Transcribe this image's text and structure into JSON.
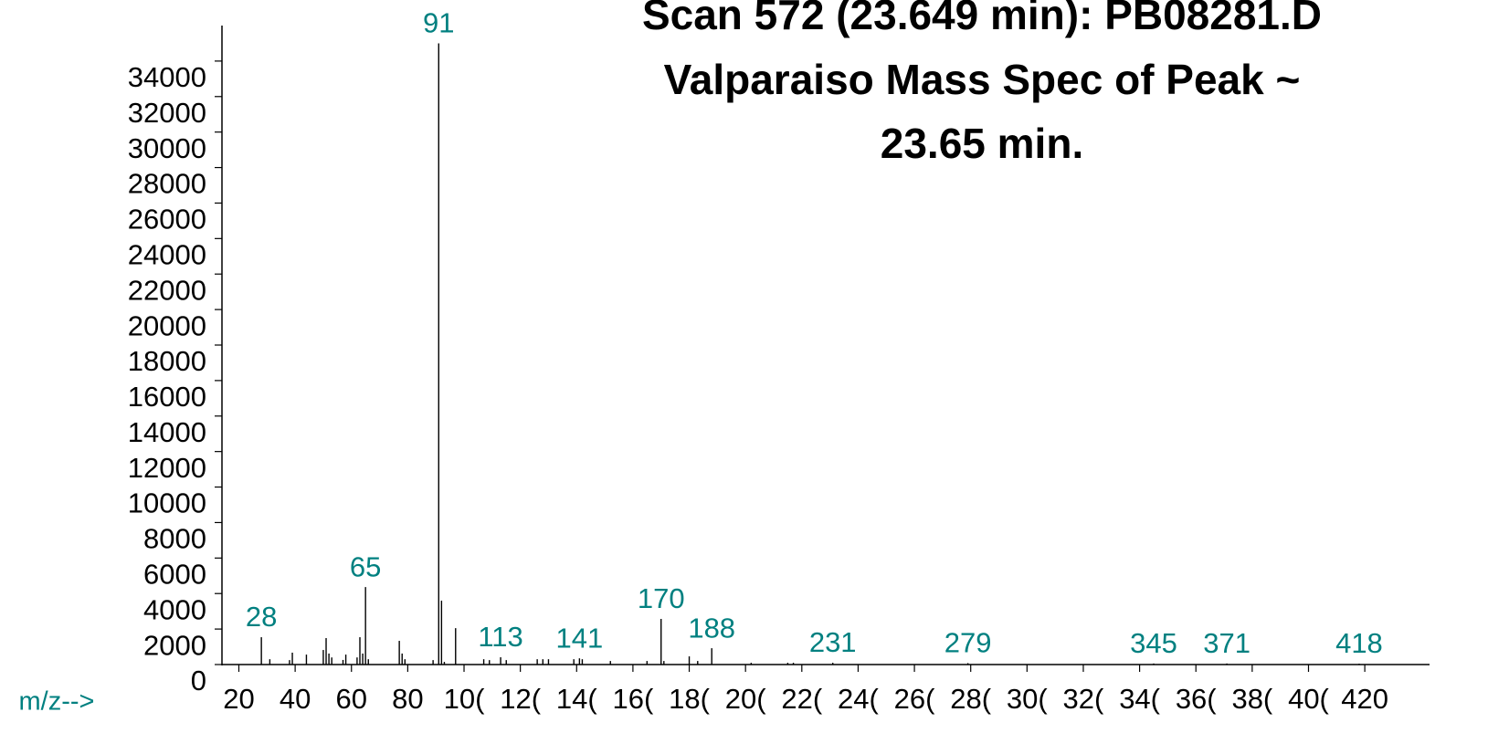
{
  "chart_data": {
    "type": "bar",
    "title": [
      "Scan 572 (23.649 min): PB08281.D",
      "Valparaiso  Mass Spec of Peak ~",
      "23.65 min."
    ],
    "x_axis_label": "m/z-->",
    "x": [
      28,
      31,
      38,
      39,
      44,
      50,
      51,
      52,
      53,
      57,
      58,
      62,
      63,
      64,
      65,
      66,
      77,
      78,
      79,
      89,
      91,
      92,
      93,
      97,
      107,
      109,
      113,
      115,
      126,
      128,
      130,
      139,
      141,
      142,
      152,
      165,
      170,
      171,
      180,
      183,
      188,
      202,
      215,
      217,
      231,
      279,
      345,
      371,
      418
    ],
    "values": [
      1540,
      300,
      250,
      670,
      560,
      820,
      1490,
      620,
      400,
      260,
      560,
      400,
      1540,
      620,
      4365,
      300,
      1335,
      620,
      300,
      250,
      35000,
      3600,
      150,
      2050,
      300,
      250,
      410,
      250,
      300,
      300,
      300,
      300,
      350,
      300,
      200,
      200,
      2570,
      200,
      460,
      200,
      920,
      100,
      100,
      100,
      100,
      80,
      60,
      60,
      50
    ],
    "color": "#000000",
    "annotations": [
      28,
      65,
      91,
      113,
      141,
      170,
      188,
      231,
      279,
      345,
      371,
      418
    ],
    "annotation_color": "#008080",
    "xlim": [
      14,
      443
    ],
    "ylim": [
      0,
      36000
    ],
    "yticks": [
      0,
      2000,
      4000,
      6000,
      8000,
      10000,
      12000,
      14000,
      16000,
      18000,
      20000,
      22000,
      24000,
      26000,
      28000,
      30000,
      32000,
      34000
    ],
    "xticks": [
      20,
      40,
      60,
      80,
      {
        "value": 100,
        "label": "10("
      },
      {
        "value": 120,
        "label": "12("
      },
      {
        "value": 140,
        "label": "14("
      },
      {
        "value": 160,
        "label": "16("
      },
      {
        "value": 180,
        "label": "18("
      },
      {
        "value": 200,
        "label": "20("
      },
      {
        "value": 220,
        "label": "22("
      },
      {
        "value": 240,
        "label": "24("
      },
      {
        "value": 260,
        "label": "26("
      },
      {
        "value": 280,
        "label": "28("
      },
      {
        "value": 300,
        "label": "30("
      },
      {
        "value": 320,
        "label": "32("
      },
      {
        "value": 340,
        "label": "34("
      },
      {
        "value": 360,
        "label": "36("
      },
      {
        "value": 380,
        "label": "38("
      },
      {
        "value": 400,
        "label": "40("
      },
      420
    ]
  }
}
